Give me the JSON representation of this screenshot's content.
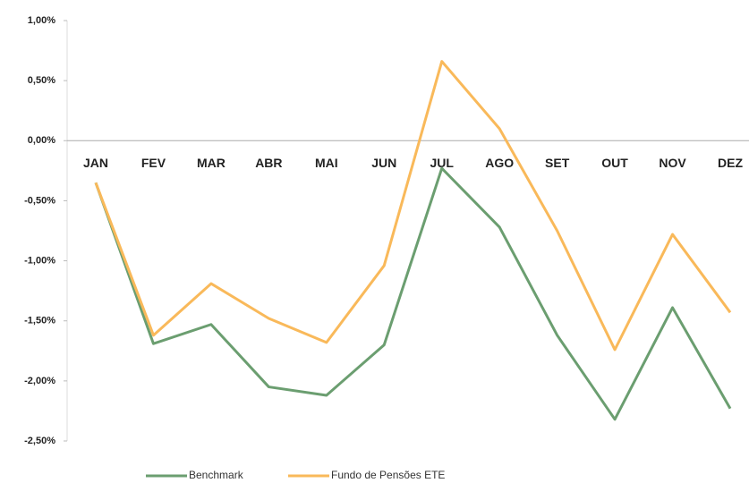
{
  "chart_data": {
    "type": "line",
    "categories": [
      "JAN",
      "FEV",
      "MAR",
      "ABR",
      "MAI",
      "JUN",
      "JUL",
      "AGO",
      "SET",
      "OUT",
      "NOV",
      "DEZ"
    ],
    "series": [
      {
        "name": "Benchmark",
        "color": "#6b9e70",
        "values": [
          -0.35,
          -1.69,
          -1.53,
          -2.05,
          -2.12,
          -1.7,
          -0.23,
          -0.72,
          -1.62,
          -2.32,
          -1.39,
          -2.23
        ]
      },
      {
        "name": "Fundo de Pensões ETE",
        "color": "#f9b95a",
        "values": [
          -0.35,
          -1.62,
          -1.19,
          -1.48,
          -1.68,
          -1.04,
          0.66,
          0.1,
          -0.75,
          -1.74,
          -0.78,
          -1.43
        ]
      }
    ],
    "ylim": [
      -2.5,
      1.0
    ],
    "yticks": [
      {
        "value": 1.0,
        "label": "1,00%"
      },
      {
        "value": 0.5,
        "label": "0,50%"
      },
      {
        "value": 0,
        "label": "0,00%"
      },
      {
        "value": -0.5,
        "label": "-0,50%"
      },
      {
        "value": -1.0,
        "label": "-1,00%"
      },
      {
        "value": -1.5,
        "label": "-1,50%"
      },
      {
        "value": -2.0,
        "label": "-2,00%"
      },
      {
        "value": -2.5,
        "label": "-2,50%"
      }
    ],
    "legend": "bottom"
  }
}
